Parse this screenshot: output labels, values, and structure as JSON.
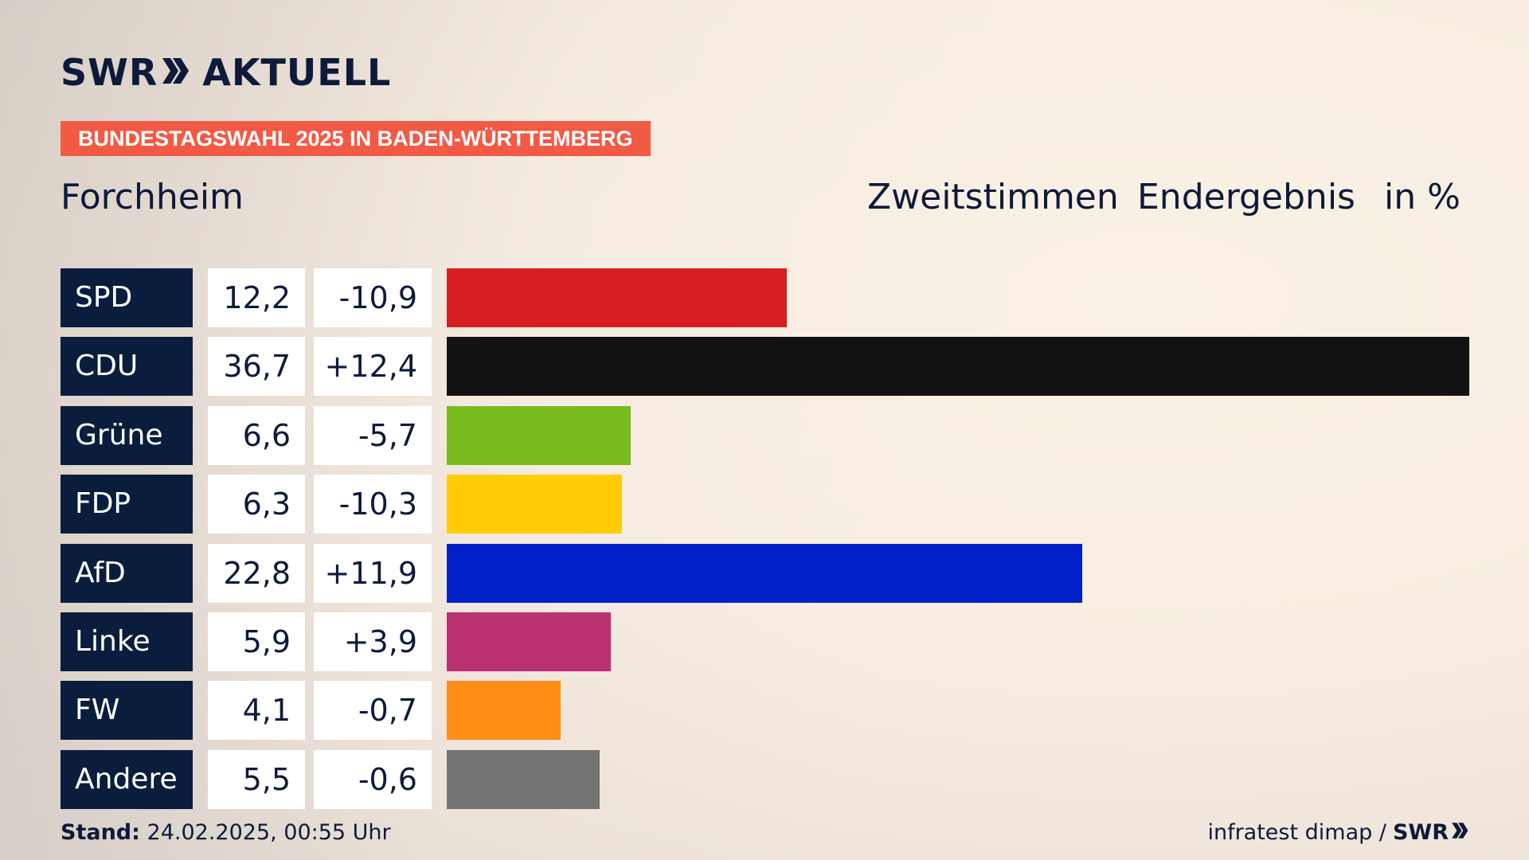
{
  "logo": {
    "left": "SWR",
    "right": "AKTUELL"
  },
  "banner": "BUNDESTAGSWAHL 2025 IN BADEN-WÜRTTEMBERG",
  "region": "Forchheim",
  "header": {
    "vote_type": "Zweitstimmen",
    "status": "Endergebnis",
    "unit": "in %"
  },
  "chart_data": {
    "type": "bar",
    "orientation": "horizontal",
    "title": "Forchheim",
    "categories": [
      "SPD",
      "CDU",
      "Grüne",
      "FDP",
      "AfD",
      "Linke",
      "FW",
      "Andere"
    ],
    "values": [
      12.2,
      36.7,
      6.6,
      6.3,
      22.8,
      5.9,
      4.1,
      5.5
    ],
    "value_labels": [
      "12,2",
      "36,7",
      "6,6",
      "6,3",
      "22,8",
      "5,9",
      "4,1",
      "5,5"
    ],
    "changes": [
      -10.9,
      12.4,
      -5.7,
      -10.3,
      11.9,
      3.9,
      -0.7,
      -0.6
    ],
    "change_labels": [
      "-10,9",
      "+12,4",
      "-5,7",
      "-10,3",
      "+11,9",
      "+3,9",
      "-0,7",
      "-0,6"
    ],
    "colors": [
      "#d71f21",
      "#121212",
      "#79bb1f",
      "#ffcc05",
      "#0020c8",
      "#bb3172",
      "#ff8c14",
      "#737373"
    ],
    "xlim": [
      0,
      36.7
    ],
    "grid": false,
    "legend": "none"
  },
  "footer": {
    "stand_label": "Stand:",
    "stand_value": "24.02.2025, 00:55 Uhr",
    "source": "infratest dimap /",
    "brand": "SWR"
  }
}
